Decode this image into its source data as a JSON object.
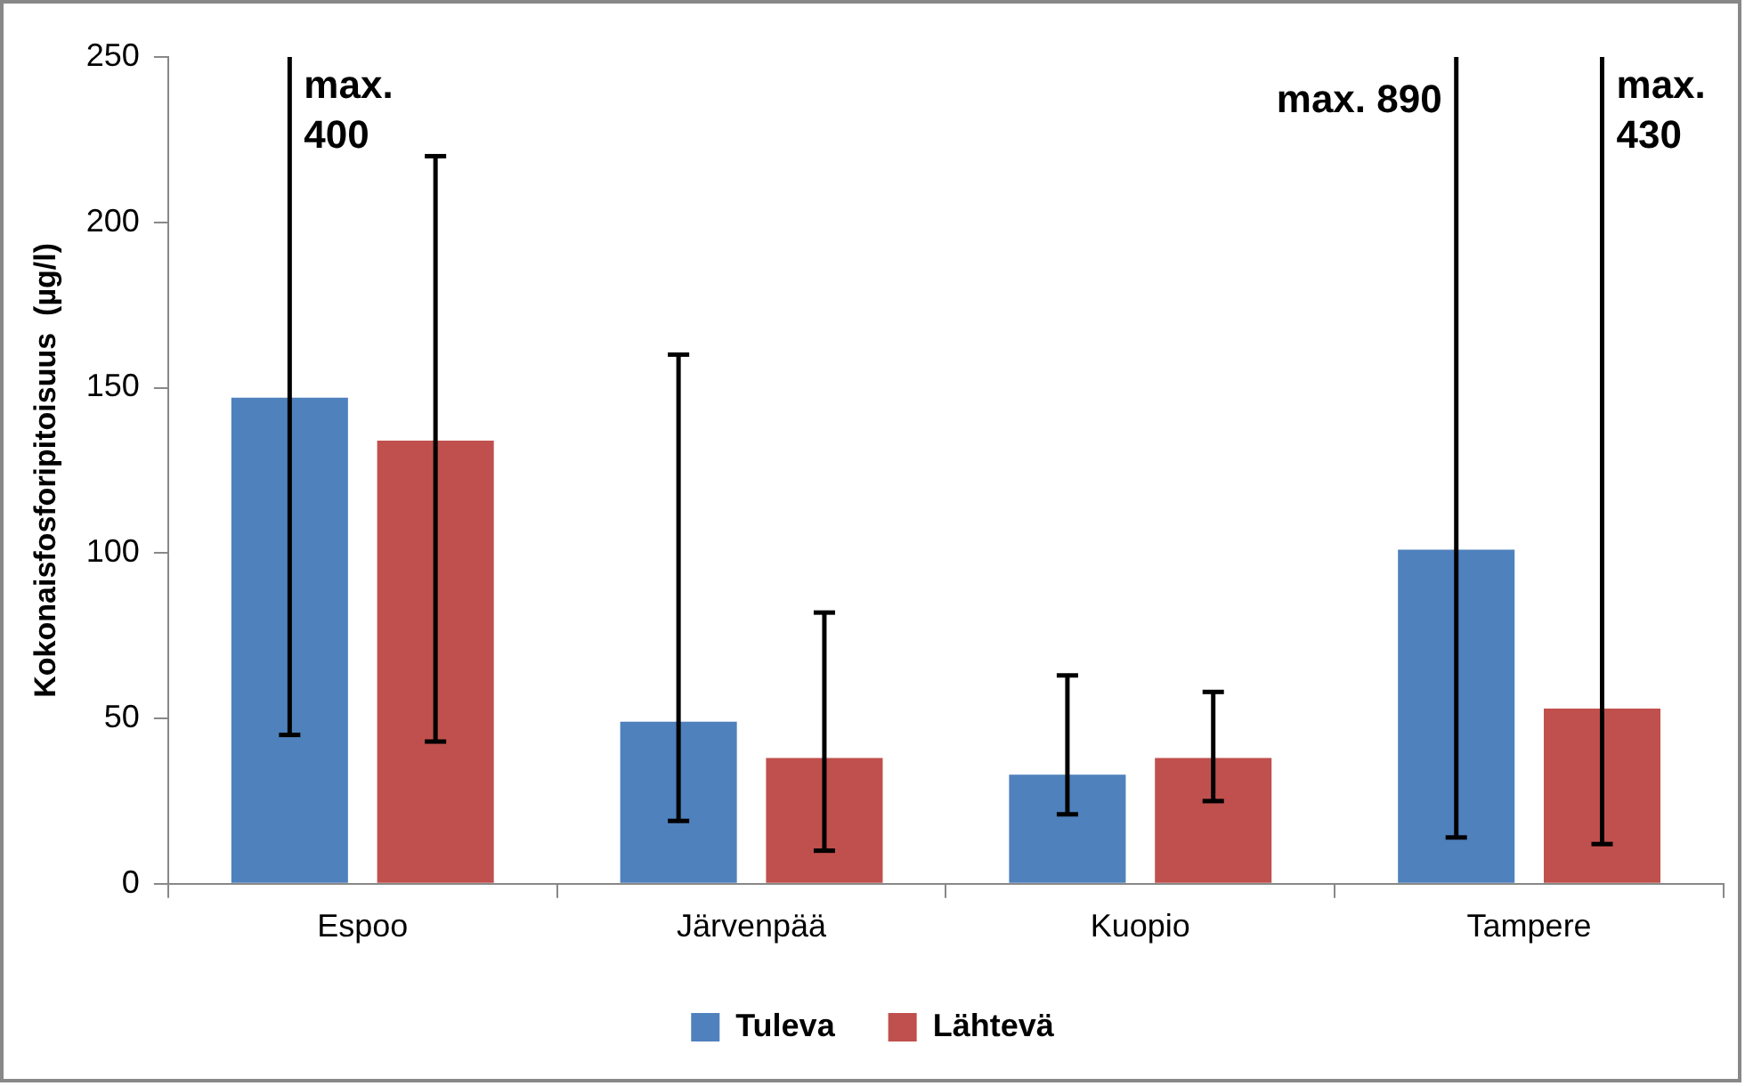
{
  "chart_data": {
    "type": "bar",
    "ylabel": "Kokonaisfosforipitoisuus  (µg/l)",
    "categories": [
      "Espoo",
      "Järvenpää",
      "Kuopio",
      "Tampere"
    ],
    "series": [
      {
        "name": "Tuleva",
        "color": "#4f81bd",
        "values": [
          147,
          49,
          33,
          101
        ],
        "errors": [
          [
            45,
            250
          ],
          [
            19,
            160
          ],
          [
            21,
            63
          ],
          [
            14,
            250
          ]
        ]
      },
      {
        "name": "Lähtevä",
        "color": "#c0504d",
        "values": [
          134,
          38,
          38,
          53
        ],
        "errors": [
          [
            43,
            220
          ],
          [
            10,
            82
          ],
          [
            25,
            58
          ],
          [
            12,
            250
          ]
        ]
      }
    ],
    "ylim": [
      0,
      250
    ],
    "yticks": [
      0,
      50,
      100,
      150,
      200,
      250
    ],
    "grid": false,
    "legend": "bottom",
    "annotations": [
      "max. 400",
      "max. 890",
      "max. 430"
    ]
  }
}
